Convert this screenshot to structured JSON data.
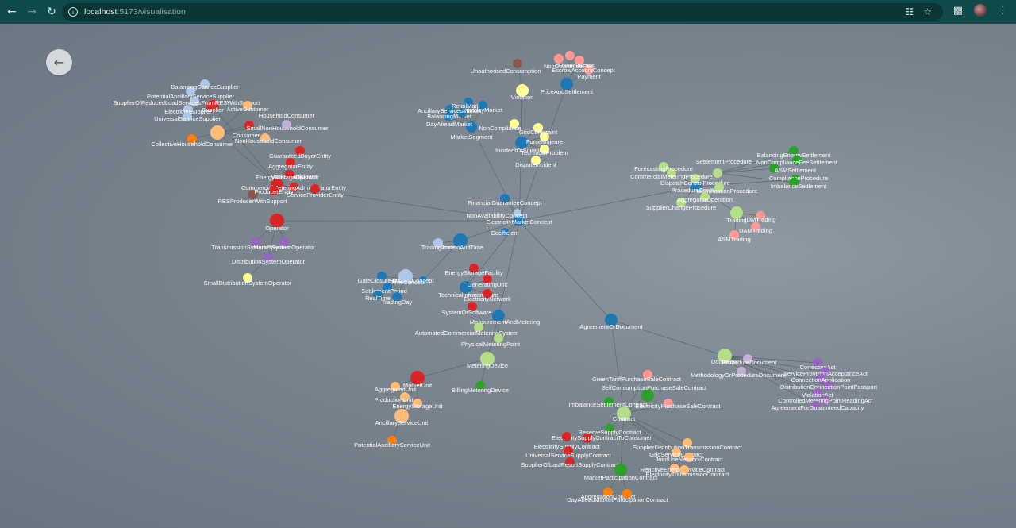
{
  "browser": {
    "url_host": "localhost",
    "url_path": ":5173/visualisation",
    "back_icon": "arrow-left-icon",
    "forward_icon": "arrow-right-icon",
    "reload_icon": "reload-icon"
  },
  "app": {
    "back_button_icon": "arrow-left-icon"
  },
  "colors": {
    "blue": "#1f77b4",
    "lightblue": "#aec7e8",
    "orange": "#ff7f0e",
    "lightorange": "#ffbb78",
    "green": "#2ca02c",
    "lightgreen": "#b5de8a",
    "red": "#d62728",
    "pink": "#ff9896",
    "purple": "#9467bd",
    "lavender": "#c5b0d5",
    "brown": "#8c564b",
    "yellow": "#ffff99",
    "edge": "#5a6670"
  },
  "graph": {
    "nodes": [
      {
        "id": "ElectricityMarketConcept",
        "label": "ElectricityMarketConcept",
        "c": "blue",
        "r": 7
      },
      {
        "id": "FinancialGuaranteeConcept",
        "label": "FinancialGuaranteeConcept",
        "c": "blue",
        "r": 6
      },
      {
        "id": "NonAvailabilityConcept",
        "label": "NonAvailabilityConcept",
        "c": "lightblue",
        "r": 5
      },
      {
        "id": "Coefficient",
        "label": "Coefficient",
        "c": "blue",
        "r": 5
      },
      {
        "id": "LocationAndTime",
        "label": "LocationAndTime",
        "c": "blue",
        "r": 9
      },
      {
        "id": "TradingZone",
        "label": "TradingZone",
        "c": "lightblue",
        "r": 6
      },
      {
        "id": "TradingConcept",
        "label": "TradingConcept",
        "c": "blue",
        "r": 5
      },
      {
        "id": "AgreementOrDocument",
        "label": "AgreementOrDocument",
        "c": "blue",
        "r": 8
      },
      {
        "id": "Operator",
        "label": "Operator",
        "c": "red",
        "r": 9
      },
      {
        "id": "TransmissionSystemOperator",
        "label": "TransmissionSystemOperator",
        "c": "purple",
        "r": 6
      },
      {
        "id": "MarketSystemOperator",
        "label": "MarketSystemOperator",
        "c": "purple",
        "r": 6
      },
      {
        "id": "DistributionSystemOperator",
        "label": "DistributionSystemOperator",
        "c": "purple",
        "r": 6
      },
      {
        "id": "SmallDistributionSystemOperator",
        "label": "SmallDistributionSystemOperator",
        "c": "yellow",
        "r": 6
      },
      {
        "id": "MarketSegment",
        "label": "MarketSegment",
        "c": "blue",
        "r": 7
      },
      {
        "id": "DayAheadMarket",
        "label": "DayAheadMarket",
        "c": "blue",
        "r": 6
      },
      {
        "id": "BalancingMarket",
        "label": "BalancingMarket",
        "c": "blue",
        "r": 6
      },
      {
        "id": "RetailMarket",
        "label": "RetailMarket",
        "c": "blue",
        "r": 6
      },
      {
        "id": "IntradayMarket",
        "label": "IntradayMarket",
        "c": "blue",
        "r": 6
      },
      {
        "id": "AncillaryServicesMarket",
        "label": "AncillaryServicesMarket",
        "c": "blue",
        "r": 6
      },
      {
        "id": "PriceAndSettlement",
        "label": "PriceAndSettlement",
        "c": "blue",
        "r": 8
      },
      {
        "id": "Payment",
        "label": "Payment",
        "c": "pink",
        "r": 6
      },
      {
        "id": "EscrowAccountConcept",
        "label": "EscrowAccountConcept",
        "c": "pink",
        "r": 6
      },
      {
        "id": "FinancialLoss",
        "label": "FinancialLoss",
        "c": "pink",
        "r": 6
      },
      {
        "id": "NonGuaranteeFee",
        "label": "NonGuaranteeFee",
        "c": "pink",
        "r": 6
      },
      {
        "id": "UnauthorisedConsumption",
        "label": "UnauthorisedConsumption",
        "c": "brown",
        "r": 6
      },
      {
        "id": "Violation",
        "label": "Violation",
        "c": "yellow",
        "r": 8
      },
      {
        "id": "IncidentOrSituation",
        "label": "IncidentOrSituation",
        "c": "blue",
        "r": 8
      },
      {
        "id": "ForceMajeure",
        "label": "ForceMajeure",
        "c": "yellow",
        "r": 6
      },
      {
        "id": "TechnicalProblem",
        "label": "TechnicalProblem",
        "c": "yellow",
        "r": 6
      },
      {
        "id": "DisputeIncident",
        "label": "DisputeIncident",
        "c": "yellow",
        "r": 6
      },
      {
        "id": "NonCompliance",
        "label": "NonCompliance",
        "c": "yellow",
        "r": 6
      },
      {
        "id": "GridConstraint",
        "label": "GridConstraint",
        "c": "yellow",
        "r": 6
      },
      {
        "id": "ProcedureConcept",
        "label": "ProcedureConcept",
        "c": "blue",
        "r": 7
      },
      {
        "id": "SupplierChangeProcedure",
        "label": "SupplierChangeProcedure",
        "c": "lightgreen",
        "r": 6
      },
      {
        "id": "AggregatorOperation",
        "label": "AggregatorOperation",
        "c": "lightgreen",
        "r": 6
      },
      {
        "id": "DispatchControlProcedure",
        "label": "DispatchControlProcedure",
        "c": "lightgreen",
        "r": 6
      },
      {
        "id": "CommercialMeteringProcedure",
        "label": "CommercialMeteringProcedure",
        "c": "lightgreen",
        "r": 6
      },
      {
        "id": "ForecastingProcedure",
        "label": "ForecastingProcedure",
        "c": "lightgreen",
        "r": 6
      },
      {
        "id": "SettlementProcedure",
        "label": "SettlementProcedure",
        "c": "lightgreen",
        "r": 6
      },
      {
        "id": "IdentificationProcedure",
        "label": "IdentificationProcedure",
        "c": "lightgreen",
        "r": 6
      },
      {
        "id": "Trading",
        "label": "Trading",
        "c": "lightgreen",
        "r": 8
      },
      {
        "id": "ComplianceProcedure",
        "label": "ComplianceProcedure",
        "c": "green",
        "r": 6
      },
      {
        "id": "ImbalanceSettlement",
        "label": "ImbalanceSettlement",
        "c": "green",
        "r": 6
      },
      {
        "id": "BalancingEnergySettlement",
        "label": "BalancingEnergySettlement",
        "c": "green",
        "r": 6
      },
      {
        "id": "NonComplianceFeeSettlement",
        "label": "NonComplianceFeeSettlement",
        "c": "green",
        "r": 6
      },
      {
        "id": "ASMSettlement",
        "label": "ASMSettlement",
        "c": "green",
        "r": 6
      },
      {
        "id": "IDMTrading",
        "label": "IDMTrading",
        "c": "pink",
        "r": 6
      },
      {
        "id": "DAMTrading",
        "label": "DAMTrading",
        "c": "pink",
        "r": 6
      },
      {
        "id": "ASMTrading",
        "label": "ASMTrading",
        "c": "pink",
        "r": 6
      },
      {
        "id": "MarketParticipant",
        "label": "MarketParticipant",
        "c": "red",
        "r": 8
      },
      {
        "id": "GuaranteedBuyerEntity",
        "label": "GuaranteedBuyerEntity",
        "c": "red",
        "r": 6
      },
      {
        "id": "AggregatorEntity",
        "label": "AggregatorEntity",
        "c": "red",
        "r": 6
      },
      {
        "id": "EnergyStorageOperator",
        "label": "EnergyStorageOperator",
        "c": "red",
        "r": 6
      },
      {
        "id": "CommercialMeteringAdministratorEntity",
        "label": "CommercialMeteringAdministratorEntity",
        "c": "red",
        "r": 6
      },
      {
        "id": "RESProducerWithSupport",
        "label": "RESProducerWithSupport",
        "c": "brown",
        "r": 6
      },
      {
        "id": "ProducerEntity",
        "label": "ProducerEntity",
        "c": "red",
        "r": 6
      },
      {
        "id": "ServiceProviderEntity",
        "label": "ServiceProviderEntity",
        "c": "red",
        "r": 6
      },
      {
        "id": "Supplier",
        "label": "Supplier",
        "c": "red",
        "r": 8
      },
      {
        "id": "SupplierOfReducedLoadServicesFromRESWithSupport",
        "label": "SupplierOfReducedLoadServicesFromRESWithSupport",
        "c": "lightblue",
        "r": 6
      },
      {
        "id": "PotentialAncillaryServiceSupplier",
        "label": "PotentialAncillaryServiceSupplier",
        "c": "lightblue",
        "r": 6
      },
      {
        "id": "BalancingServiceSupplier",
        "label": "BalancingServiceSupplier",
        "c": "lightblue",
        "r": 6
      },
      {
        "id": "ElectricitySupplier",
        "label": "ElectricitySupplier",
        "c": "lightblue",
        "r": 6
      },
      {
        "id": "UniversalServiceSupplier",
        "label": "UniversalServiceSupplier",
        "c": "lightblue",
        "r": 6
      },
      {
        "id": "Consumer",
        "label": "Consumer",
        "c": "lightorange",
        "r": 9
      },
      {
        "id": "SmallNonHouseholdConsumer",
        "label": "SmallNonHouseholdConsumer",
        "c": "red",
        "r": 6
      },
      {
        "id": "NonHouseholdConsumer",
        "label": "NonHouseholdConsumer",
        "c": "lightorange",
        "r": 6
      },
      {
        "id": "CollectiveHouseholdConsumer",
        "label": "CollectiveHouseholdConsumer",
        "c": "orange",
        "r": 6
      },
      {
        "id": "ActiveCustomer",
        "label": "ActiveCustomer",
        "c": "lightorange",
        "r": 6
      },
      {
        "id": "HouseholdConsumer",
        "label": "HouseholdConsumer",
        "c": "lavender",
        "r": 6
      },
      {
        "id": "TechnicalInfrastructure",
        "label": "TechnicalInfrastructure",
        "c": "blue",
        "r": 8
      },
      {
        "id": "EnergyStorageFacility",
        "label": "EnergyStorageFacility",
        "c": "red",
        "r": 6
      },
      {
        "id": "GeneratingUnit",
        "label": "GeneratingUnit",
        "c": "red",
        "r": 6
      },
      {
        "id": "ElectricityNetwork",
        "label": "ElectricityNetwork",
        "c": "red",
        "r": 6
      },
      {
        "id": "SystemOrSoftware",
        "label": "SystemOrSoftware",
        "c": "red",
        "r": 6
      },
      {
        "id": "MeasurementAndMetering",
        "label": "MeasurementAndMetering",
        "c": "blue",
        "r": 8
      },
      {
        "id": "AutomatedCommercialMeteringSystem",
        "label": "AutomatedCommercialMeteringSystem",
        "c": "lightgreen",
        "r": 6
      },
      {
        "id": "PhysicalMeteringPoint",
        "label": "PhysicalMeteringPoint",
        "c": "lightgreen",
        "r": 6
      },
      {
        "id": "MeteringDevice",
        "label": "MeteringDevice",
        "c": "lightgreen",
        "r": 9
      },
      {
        "id": "BillingMeteringDevice",
        "label": "BillingMeteringDevice",
        "c": "green",
        "r": 6
      },
      {
        "id": "MarketUnit",
        "label": "MarketUnit",
        "c": "red",
        "r": 9
      },
      {
        "id": "AggregatedUnit",
        "label": "AggregatedUnit",
        "c": "lightorange",
        "r": 6
      },
      {
        "id": "ProductionUnit",
        "label": "ProductionUnit",
        "c": "lightorange",
        "r": 6
      },
      {
        "id": "EnergyStorageUnit",
        "label": "EnergyStorageUnit",
        "c": "lightorange",
        "r": 6
      },
      {
        "id": "AncillaryServiceUnit",
        "label": "AncillaryServiceUnit",
        "c": "lightorange",
        "r": 9
      },
      {
        "id": "PotentialAncillaryServiceUnit",
        "label": "PotentialAncillaryServiceUnit",
        "c": "orange",
        "r": 6
      },
      {
        "id": "GateClosureTime",
        "label": "GateClosureTime",
        "c": "blue",
        "r": 6
      },
      {
        "id": "TimeConcept",
        "label": "TimeConcept",
        "c": "lightblue",
        "r": 9
      },
      {
        "id": "SettlementPeriod",
        "label": "SettlementPeriod",
        "c": "blue",
        "r": 6
      },
      {
        "id": "RealTime",
        "label": "RealTime",
        "c": "blue",
        "r": 6
      },
      {
        "id": "TradingDay",
        "label": "TradingDay",
        "c": "blue",
        "r": 6
      },
      {
        "id": "Document",
        "label": "Document",
        "c": "lightgreen",
        "r": 9
      },
      {
        "id": "ProcedureDocument",
        "label": "ProcedureDocument",
        "c": "lavender",
        "r": 6
      },
      {
        "id": "MethodologyOrProcedureDocument",
        "label": "MethodologyOrProcedureDocument",
        "c": "lavender",
        "r": 6
      },
      {
        "id": "CorrectiveAct",
        "label": "CorrectiveAct",
        "c": "purple",
        "r": 6
      },
      {
        "id": "ServiceProvisionAcceptanceAct",
        "label": "ServiceProvisionAcceptanceAct",
        "c": "purple",
        "r": 6
      },
      {
        "id": "ConnectionApplication",
        "label": "ConnectionApplication",
        "c": "purple",
        "r": 6
      },
      {
        "id": "DistributionConnectionPointPassport",
        "label": "DistributionConnectionPointPassport",
        "c": "purple",
        "r": 6
      },
      {
        "id": "ViolationAct",
        "label": "ViolationAct",
        "c": "purple",
        "r": 6
      },
      {
        "id": "ControlledMeteringPointReadingAct",
        "label": "ControlledMeteringPointReadingAct",
        "c": "purple",
        "r": 6
      },
      {
        "id": "AgreementForGuaranteedCapacity",
        "label": "AgreementForGuaranteedCapacity",
        "c": "purple",
        "r": 6
      },
      {
        "id": "Contract",
        "label": "Contract",
        "c": "lightgreen",
        "r": 9
      },
      {
        "id": "GreenTariffPurchaseSaleContract",
        "label": "GreenTariffPurchaseSaleContract",
        "c": "pink",
        "r": 6
      },
      {
        "id": "SelfConsumptionPurchaseSaleContract",
        "label": "SelfConsumptionPurchaseSaleContract",
        "c": "green",
        "r": 8
      },
      {
        "id": "ImbalanceSettlementContract",
        "label": "ImbalanceSettlementContract",
        "c": "green",
        "r": 6
      },
      {
        "id": "ElectricityPurchaseSaleContract",
        "label": "ElectricityPurchaseSaleContract",
        "c": "pink",
        "r": 6
      },
      {
        "id": "ReserveSupplyContract",
        "label": "ReserveSupplyContract",
        "c": "green",
        "r": 6
      },
      {
        "id": "ElectricitySupplyContractToConsumer",
        "label": "ElectricitySupplyContractToConsumer",
        "c": "red",
        "r": 6
      },
      {
        "id": "ElectricitySupplyContract",
        "label": "ElectricitySupplyContract",
        "c": "red",
        "r": 6
      },
      {
        "id": "UniversalServiceSupplyContract",
        "label": "UniversalServiceSupplyContract",
        "c": "red",
        "r": 6
      },
      {
        "id": "SupplierOfLastResortSupplyContract",
        "label": "SupplierOfLastResortSupplyContract",
        "c": "red",
        "r": 6
      },
      {
        "id": "SupplierDistributionTransmissionContract",
        "label": "SupplierDistributionTransmissionContract",
        "c": "lightorange",
        "r": 6
      },
      {
        "id": "GridServiceContract",
        "label": "GridServiceContract",
        "c": "lightorange",
        "r": 6
      },
      {
        "id": "JointUseNetworkContract",
        "label": "JointUseNetworkContract",
        "c": "lightorange",
        "r": 6
      },
      {
        "id": "ReactiveEnergyServiceContract",
        "label": "ReactiveEnergyServiceContract",
        "c": "lightorange",
        "r": 6
      },
      {
        "id": "ElectricityTransmissionContract",
        "label": "ElectricityTransmissionContract",
        "c": "lightorange",
        "r": 6
      },
      {
        "id": "MarketParticipationContract",
        "label": "MarketParticipationContract",
        "c": "green",
        "r": 8
      },
      {
        "id": "AggregationContract",
        "label": "AggregationContract",
        "c": "orange",
        "r": 6
      },
      {
        "id": "DayAheadMarketParticipationContract",
        "label": "DayAheadMarketParticipationContract",
        "c": "orange",
        "r": 6
      }
    ]
  }
}
